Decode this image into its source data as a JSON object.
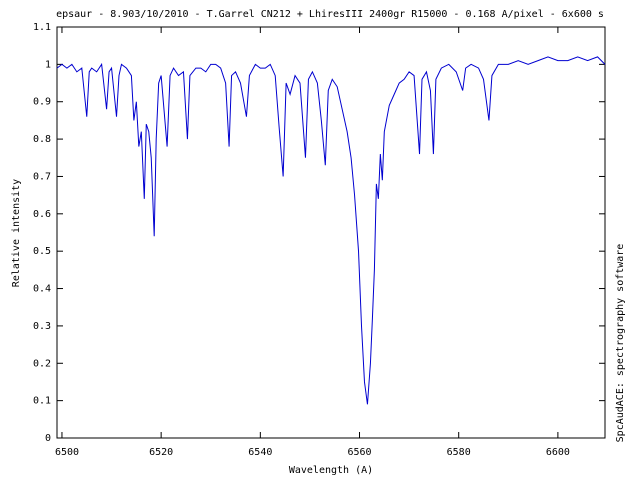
{
  "chart_data": {
    "type": "line",
    "title": "epsaur - 8.903/10/2010 - T.Garrel CN212 + LhiresIII 2400gr R15000 - 0.168 A/pixel - 6x600 s",
    "x_label": "Wavelength (A)",
    "y_label": "Relative intensity",
    "annotation": "SpcAudACE: spectrography software",
    "color": "#0000d0",
    "x": [
      6499,
      6500,
      6501,
      6502,
      6503,
      6504,
      6505,
      6505.5,
      6506,
      6507,
      6508,
      6509,
      6509.5,
      6510,
      6511,
      6511.5,
      6512,
      6513,
      6514,
      6514.5,
      6515,
      6515.5,
      6516,
      6516.6,
      6517,
      6517.5,
      6518,
      6518.6,
      6519,
      6519.5,
      6520,
      6521.2,
      6521.8,
      6522.5,
      6523.5,
      6524.5,
      6525.3,
      6525.8,
      6527,
      6528,
      6529,
      6530,
      6531,
      6532,
      6533,
      6533.7,
      6534.2,
      6535,
      6536,
      6537.2,
      6537.8,
      6539,
      6540,
      6541,
      6542,
      6543,
      6543.8,
      6544.6,
      6545.2,
      6546,
      6547,
      6548,
      6549.1,
      6549.7,
      6550.5,
      6551.5,
      6552.3,
      6553.1,
      6553.7,
      6554.5,
      6555.5,
      6556.5,
      6557.5,
      6558.3,
      6559,
      6559.8,
      6560.4,
      6561,
      6561.6,
      6562.2,
      6562.6,
      6563,
      6563.4,
      6563.8,
      6564.2,
      6564.6,
      6565,
      6566,
      6567,
      6568,
      6569,
      6570,
      6571,
      6572.1,
      6572.6,
      6573.5,
      6574.3,
      6574.9,
      6575.4,
      6576.5,
      6578,
      6579.5,
      6580.8,
      6581.4,
      6582.5,
      6584,
      6585,
      6586.1,
      6586.7,
      6588,
      6590,
      6592,
      6594,
      6596,
      6598,
      6600,
      6602,
      6604,
      6606,
      6608,
      6609.5
    ],
    "values": [
      0.99,
      1.0,
      0.99,
      1.0,
      0.98,
      0.99,
      0.86,
      0.98,
      0.99,
      0.98,
      1.0,
      0.88,
      0.98,
      0.99,
      0.86,
      0.97,
      1.0,
      0.99,
      0.97,
      0.85,
      0.9,
      0.78,
      0.82,
      0.64,
      0.84,
      0.82,
      0.75,
      0.54,
      0.8,
      0.95,
      0.97,
      0.78,
      0.97,
      0.99,
      0.97,
      0.98,
      0.8,
      0.97,
      0.99,
      0.99,
      0.98,
      1.0,
      1.0,
      0.99,
      0.95,
      0.78,
      0.97,
      0.98,
      0.95,
      0.86,
      0.97,
      1.0,
      0.99,
      0.99,
      1.0,
      0.97,
      0.83,
      0.7,
      0.95,
      0.92,
      0.97,
      0.95,
      0.75,
      0.96,
      0.98,
      0.95,
      0.85,
      0.73,
      0.93,
      0.96,
      0.94,
      0.88,
      0.82,
      0.75,
      0.65,
      0.5,
      0.3,
      0.15,
      0.09,
      0.2,
      0.32,
      0.45,
      0.68,
      0.64,
      0.76,
      0.69,
      0.82,
      0.89,
      0.92,
      0.95,
      0.96,
      0.98,
      0.97,
      0.76,
      0.96,
      0.98,
      0.93,
      0.76,
      0.96,
      0.99,
      1.0,
      0.98,
      0.93,
      0.99,
      1.0,
      0.99,
      0.96,
      0.85,
      0.97,
      1.0,
      1.0,
      1.01,
      1.0,
      1.01,
      1.02,
      1.01,
      1.01,
      1.02,
      1.01,
      1.02,
      1.0
    ],
    "xlim": [
      6499,
      6609.5
    ],
    "xticks": [
      6500,
      6520,
      6540,
      6560,
      6580,
      6600
    ],
    "ylim": [
      0,
      1.1
    ],
    "yticks": [
      0,
      0.1,
      0.2,
      0.3,
      0.4,
      0.5,
      0.6,
      0.7,
      0.8,
      0.9,
      1,
      1.1
    ]
  }
}
